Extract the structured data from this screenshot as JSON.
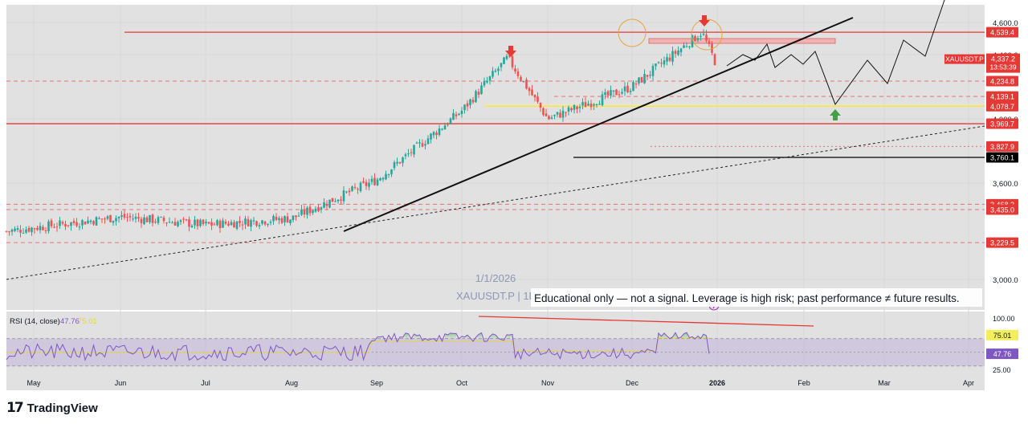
{
  "chart_data": {
    "type": "candlestick",
    "symbol": "XAUUSDT.P",
    "watermark": {
      "date": "1/1/2026",
      "symbol": "XAUUSDT.P | 1D"
    },
    "disclaimer": "Educational only — not a signal. Leverage is high risk; past performance ≠ future results.",
    "price_axis": {
      "ticks": [
        "4,600.0",
        "4,400.0",
        "4,000.0",
        "3,600.0",
        "3,000.0"
      ],
      "tick_values": [
        4600,
        4400,
        4000,
        3600,
        3000
      ]
    },
    "time_axis": {
      "labels": [
        "May",
        "Jun",
        "Jul",
        "Aug",
        "Sep",
        "Oct",
        "Nov",
        "Dec",
        "2026",
        "Feb",
        "Mar",
        "Apr"
      ]
    },
    "current_price": {
      "value": "4,337.2",
      "countdown": "13:53:39",
      "symbol": "XAUUSDT.P"
    },
    "levels": [
      {
        "label": "4,539.4",
        "value": 4539.4,
        "style": "solid",
        "color": "#e53935"
      },
      {
        "label": "4,234.8",
        "value": 4234.8,
        "style": "dashed",
        "color": "#e57373"
      },
      {
        "label": "4,139.1",
        "value": 4139.1,
        "style": "dashed",
        "color": "#e57373"
      },
      {
        "label": "4,078.7",
        "value": 4078.7,
        "style": "solid",
        "color": "#e6c229"
      },
      {
        "label": "3,969.7",
        "value": 3969.7,
        "style": "solid",
        "color": "#e53935"
      },
      {
        "label": "3,827.9",
        "value": 3827.9,
        "style": "dotted",
        "color": "#e57373"
      },
      {
        "label": "3,760.1",
        "value": 3760.1,
        "style": "solid",
        "color": "#000000"
      },
      {
        "label": "3,468.3",
        "value": 3468.3,
        "style": "dashed",
        "color": "#e57373"
      },
      {
        "label": "3,435.0",
        "value": 3435.0,
        "style": "dashed",
        "color": "#e57373"
      },
      {
        "label": "3,229.5",
        "value": 3229.5,
        "style": "dashed",
        "color": "#e57373"
      }
    ],
    "price_path": [
      {
        "month": "May",
        "price": 3300
      },
      {
        "month": "Jun",
        "price": 3390
      },
      {
        "month": "Jul",
        "price": 3340
      },
      {
        "month": "Aug",
        "price": 3380
      },
      {
        "month": "Sep",
        "price": 3620
      },
      {
        "month": "Oct",
        "price": 4050
      },
      {
        "month": "Oct",
        "price": 4380
      },
      {
        "month": "Nov",
        "price": 4000
      },
      {
        "month": "Dec",
        "price": 4200
      },
      {
        "month": "2026",
        "price": 4540
      },
      {
        "month": "2026",
        "price": 4337.2
      }
    ],
    "rsi": {
      "label": "RSI (14, close)",
      "value": "47.76",
      "ma_value": "75.01",
      "levels": [
        "100.00",
        "25.00"
      ],
      "upper_band": 70,
      "lower_band": 30
    },
    "grid": true,
    "colors": {
      "up": "#26a69a",
      "down": "#ef5350",
      "background": "#e1e1e1"
    }
  },
  "branding": {
    "name": "TradingView",
    "mark": "17"
  }
}
